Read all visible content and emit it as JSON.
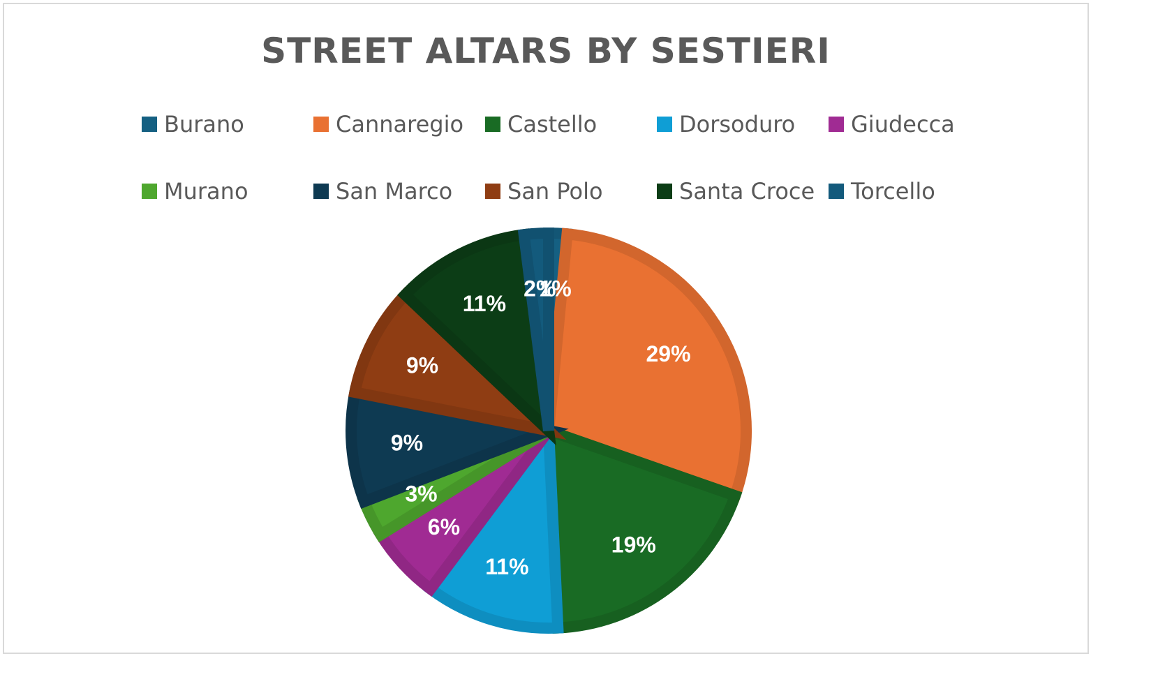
{
  "chart_data": {
    "type": "pie",
    "title": "STREET ALTARS BY SESTIERI",
    "legend_position": "top",
    "categories": [
      "Burano",
      "Cannaregio",
      "Castello",
      "Dorsoduro",
      "Giudecca",
      "Murano",
      "San Marco",
      "San Polo",
      "Santa Croce",
      "Torcello"
    ],
    "values": [
      1.5,
      29,
      19,
      11,
      6,
      3,
      9,
      9,
      11,
      2
    ],
    "labels": [
      "1%",
      "29%",
      "19%",
      "11%",
      "6%",
      "3%",
      "9%",
      "9%",
      "11%",
      "2%"
    ],
    "colors": [
      "#156082",
      "#e97132",
      "#196b24",
      "#0f9ed5",
      "#a02b93",
      "#4ea72e",
      "#0e3a52",
      "#8f3d13",
      "#0c3d16",
      "#135a7c"
    ]
  }
}
